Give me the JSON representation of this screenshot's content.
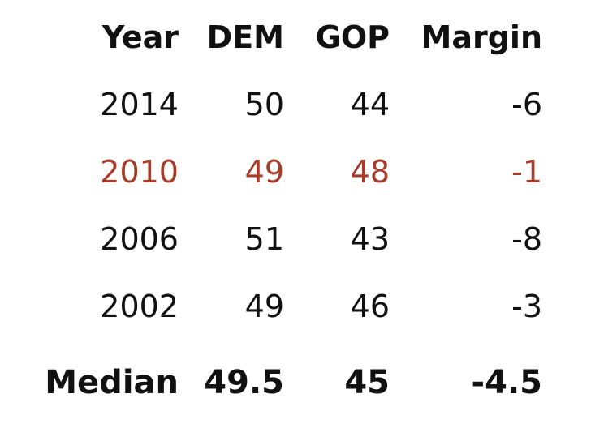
{
  "header": {
    "year": "Year",
    "dem": "DEM",
    "gop": "GOP",
    "margin": "Margin"
  },
  "rows": [
    {
      "year": "2014",
      "dem": "50",
      "gop": "44",
      "margin": "-6",
      "highlight": false
    },
    {
      "year": "2010",
      "dem": "49",
      "gop": "48",
      "margin": "-1",
      "highlight": true
    },
    {
      "year": "2006",
      "dem": "51",
      "gop": "43",
      "margin": "-8",
      "highlight": false
    },
    {
      "year": "2002",
      "dem": "49",
      "gop": "46",
      "margin": "-3",
      "highlight": false
    }
  ],
  "footer": {
    "label": "Median",
    "dem": "49.5",
    "gop": "45",
    "margin": "-4.5"
  },
  "colors": {
    "text": "#111111",
    "highlight": "#a83a28",
    "background": "#ffffff"
  }
}
